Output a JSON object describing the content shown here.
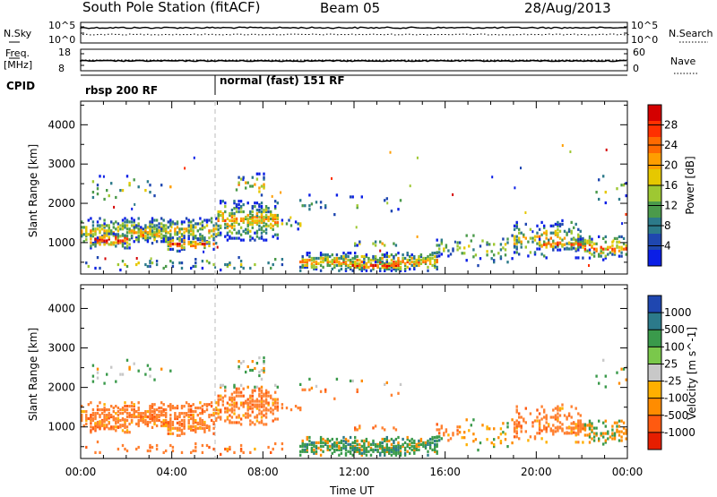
{
  "header": {
    "station": "South Pole Station (fitACF)",
    "beam": "Beam 05",
    "date": "28/Aug/2013"
  },
  "top_strip": {
    "nsky_label": "N.Sky",
    "nsky_ticks": [
      "10^5",
      "10^0"
    ],
    "nsearch_label": "N.Search",
    "nsearch_ticks": [
      "10^5",
      "10^0"
    ],
    "freq_label": "Freq.",
    "freq_unit": "[MHz]",
    "freq_ticks": [
      "18",
      "8"
    ],
    "nave_label": "Nave",
    "nave_ticks": [
      "60",
      "0"
    ],
    "cpid_label": "CPID",
    "cpid_segments": [
      "rbsp 200 RF",
      "normal (fast) 151 RF"
    ]
  },
  "chart_data": [
    {
      "type": "heatmap",
      "name": "power-panel",
      "ylabel": "Slant Range [km]",
      "y_ticks": [
        1000,
        2000,
        3000,
        4000
      ],
      "ylim": [
        200,
        4600
      ],
      "colorbar_label": "Power [dB]",
      "colorbar_ticks": [
        "28",
        "24",
        "20",
        "16",
        "12",
        "8",
        "4"
      ],
      "colorbar_colors": [
        "#d40000",
        "#ff3000",
        "#ff6a00",
        "#ff9e00",
        "#e6c800",
        "#9ec832",
        "#4b9a4b",
        "#2c7a8a",
        "#1f47b0",
        "#0a1ee6"
      ]
    },
    {
      "type": "heatmap",
      "name": "velocity-panel",
      "ylabel": "Slant Range [km]",
      "y_ticks": [
        1000,
        2000,
        3000,
        4000
      ],
      "ylim": [
        200,
        4600
      ],
      "colorbar_label": "Velocity [m s^-1]",
      "colorbar_ticks": [
        "1000",
        "500",
        "100",
        "25",
        "-25",
        "-100",
        "-500",
        "-1000"
      ],
      "colorbar_colors": [
        "#1f47b0",
        "#2c7a8a",
        "#3a9a4b",
        "#7ac84b",
        "#c8c8c8",
        "#ffb000",
        "#ff8c00",
        "#ff5a10",
        "#e61e00"
      ]
    }
  ],
  "time_axis": {
    "labels": [
      "00:00",
      "04:00",
      "08:00",
      "12:00",
      "16:00",
      "20:00",
      "00:00"
    ],
    "title": "Time UT"
  },
  "colors": {
    "velocity_main": "#ff8030",
    "velocity_ground": "#3a8a5a"
  }
}
